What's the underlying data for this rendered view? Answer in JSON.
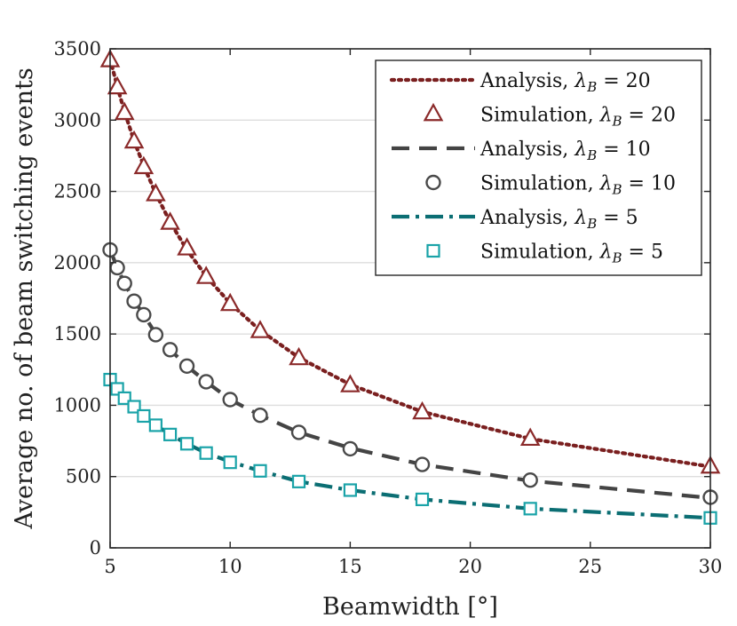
{
  "chart_data": {
    "type": "line",
    "title": "",
    "xlabel": "Beamwidth [°]",
    "ylabel": "Average no. of beam switching events",
    "xlim": [
      5,
      30
    ],
    "ylim": [
      0,
      3500
    ],
    "xticks": [
      5,
      10,
      15,
      20,
      25,
      30
    ],
    "yticks": [
      0,
      500,
      1000,
      1500,
      2000,
      2500,
      3000,
      3500
    ],
    "grid": "horizontal",
    "legend_position": "top-right",
    "series": [
      {
        "name": "Analysis, λB = 20",
        "label_prefix": "Analysis, ",
        "lambda": "λ",
        "sub": "B",
        "eq": " = 20",
        "kind": "line",
        "style": "dotted",
        "color": "#7a1f1f",
        "x": [
          5,
          5.3,
          5.6,
          6,
          6.4,
          6.9,
          7.5,
          8.2,
          9,
          10,
          11.25,
          12.86,
          15,
          18,
          22.5,
          30
        ],
        "y": [
          3430,
          3235,
          3060,
          2855,
          2680,
          2485,
          2285,
          2090,
          1905,
          1715,
          1525,
          1335,
          1145,
          955,
          765,
          570
        ]
      },
      {
        "name": "Simulation, λB = 20",
        "label_prefix": "Simulation, ",
        "lambda": "λ",
        "sub": "B",
        "eq": " = 20",
        "kind": "marker",
        "marker": "triangle",
        "color": "#8b2a2a",
        "x": [
          5,
          5.3,
          5.6,
          6,
          6.4,
          6.9,
          7.5,
          8.2,
          9,
          10,
          11.25,
          12.86,
          15,
          18,
          22.5,
          30
        ],
        "y": [
          3420,
          3230,
          3050,
          2850,
          2670,
          2480,
          2280,
          2100,
          1900,
          1710,
          1520,
          1330,
          1140,
          950,
          765,
          570
        ]
      },
      {
        "name": "Analysis, λB = 10",
        "label_prefix": "Analysis, ",
        "lambda": "λ",
        "sub": "B",
        "eq": " = 10",
        "kind": "line",
        "style": "dashed",
        "color": "#444444",
        "x": [
          5,
          5.3,
          5.6,
          6,
          6.4,
          6.9,
          7.5,
          8.2,
          9,
          10,
          11.25,
          12.86,
          15,
          18,
          22.5,
          30
        ],
        "y": [
          2090,
          1965,
          1855,
          1735,
          1635,
          1500,
          1390,
          1275,
          1165,
          1040,
          930,
          810,
          700,
          585,
          470,
          350
        ]
      },
      {
        "name": "Simulation, λB = 10",
        "label_prefix": "Simulation, ",
        "lambda": "λ",
        "sub": "B",
        "eq": " = 10",
        "kind": "marker",
        "marker": "circle",
        "color": "#4a4a4a",
        "x": [
          5,
          5.3,
          5.6,
          6,
          6.4,
          6.9,
          7.5,
          8.2,
          9,
          10,
          11.25,
          12.86,
          15,
          18,
          22.5,
          30
        ],
        "y": [
          2090,
          1965,
          1855,
          1730,
          1635,
          1495,
          1390,
          1275,
          1165,
          1040,
          930,
          810,
          695,
          585,
          475,
          355
        ]
      },
      {
        "name": "Analysis, λB = 5",
        "label_prefix": "Analysis, ",
        "lambda": "λ",
        "sub": "B",
        "eq": " = 5",
        "kind": "line",
        "style": "dashdot",
        "color": "#0b6e73",
        "x": [
          5,
          5.3,
          5.6,
          6,
          6.4,
          6.9,
          7.5,
          8.2,
          9,
          10,
          11.25,
          12.86,
          15,
          18,
          22.5,
          30
        ],
        "y": [
          1185,
          1110,
          1055,
          990,
          925,
          860,
          795,
          730,
          665,
          605,
          540,
          465,
          405,
          340,
          275,
          210
        ]
      },
      {
        "name": "Simulation, λB = 5",
        "label_prefix": "Simulation, ",
        "lambda": "λ",
        "sub": "B",
        "eq": " = 5",
        "kind": "marker",
        "marker": "square",
        "color": "#1aa3a8",
        "x": [
          5,
          5.3,
          5.6,
          6,
          6.4,
          6.9,
          7.5,
          8.2,
          9,
          10,
          11.25,
          12.86,
          15,
          18,
          22.5,
          30
        ],
        "y": [
          1180,
          1115,
          1050,
          990,
          925,
          860,
          795,
          730,
          665,
          600,
          540,
          465,
          405,
          340,
          275,
          210
        ]
      }
    ]
  }
}
